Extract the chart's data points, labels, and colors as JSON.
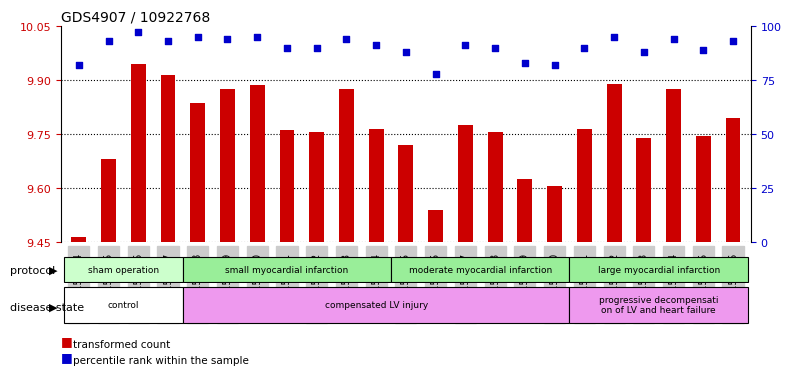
{
  "title": "GDS4907 / 10922768",
  "samples": [
    "GSM1151154",
    "GSM1151155",
    "GSM1151156",
    "GSM1151157",
    "GSM1151158",
    "GSM1151159",
    "GSM1151160",
    "GSM1151161",
    "GSM1151162",
    "GSM1151163",
    "GSM1151164",
    "GSM1151165",
    "GSM1151166",
    "GSM1151167",
    "GSM1151168",
    "GSM1151169",
    "GSM1151170",
    "GSM1151171",
    "GSM1151172",
    "GSM1151173",
    "GSM1151174",
    "GSM1151175",
    "GSM1151176"
  ],
  "bar_values": [
    9.465,
    9.68,
    9.945,
    9.915,
    9.835,
    9.875,
    9.885,
    9.76,
    9.755,
    9.875,
    9.765,
    9.72,
    9.54,
    9.775,
    9.755,
    9.625,
    9.605,
    9.765,
    9.89,
    9.74,
    9.875,
    9.745,
    9.795
  ],
  "percentile_values": [
    82,
    93,
    97,
    93,
    95,
    94,
    95,
    90,
    90,
    94,
    91,
    88,
    78,
    91,
    90,
    83,
    82,
    90,
    95,
    88,
    94,
    89,
    93
  ],
  "bar_color": "#cc0000",
  "percentile_color": "#0000cc",
  "ylim_left": [
    9.45,
    10.05
  ],
  "ylim_right": [
    0,
    100
  ],
  "yticks_left": [
    9.45,
    9.6,
    9.75,
    9.9,
    10.05
  ],
  "yticks_right": [
    0,
    25,
    50,
    75,
    100
  ],
  "protocol_groups": [
    {
      "label": "sham operation",
      "start": 0,
      "end": 4,
      "color": "#99ee99"
    },
    {
      "label": "small myocardial infarction",
      "start": 4,
      "end": 11,
      "color": "#99ee99"
    },
    {
      "label": "moderate myocardial infarction",
      "start": 11,
      "end": 17,
      "color": "#99ee99"
    },
    {
      "label": "large myocardial infarction",
      "start": 17,
      "end": 23,
      "color": "#99ee99"
    }
  ],
  "disease_groups": [
    {
      "label": "control",
      "start": 0,
      "end": 4,
      "color": "#ffffff"
    },
    {
      "label": "compensated LV injury",
      "start": 4,
      "end": 17,
      "color": "#ee99ee"
    },
    {
      "label": "progressive decompensati\non of LV and heart failure",
      "start": 17,
      "end": 23,
      "color": "#ee99ee"
    }
  ],
  "legend_items": [
    {
      "label": "transformed count",
      "color": "#cc0000",
      "marker": "s"
    },
    {
      "label": "percentile rank within the sample",
      "color": "#0000cc",
      "marker": "s"
    }
  ],
  "right_ytick_color": "#0000cc",
  "left_ytick_color": "#cc0000",
  "protocol_label": "protocol",
  "disease_label": "disease state"
}
